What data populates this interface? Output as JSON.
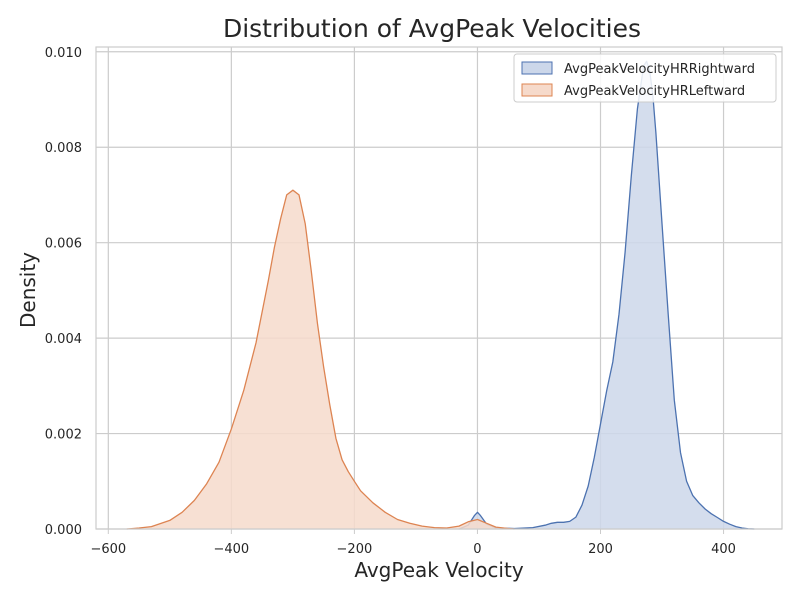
{
  "chart_data": {
    "type": "area",
    "title": "Distribution of AvgPeak Velocities",
    "xlabel": "AvgPeak Velocity",
    "ylabel": "Density",
    "xlim": [
      -620,
      495
    ],
    "ylim": [
      0,
      0.0101
    ],
    "xticks": [
      -600,
      -400,
      -200,
      0,
      200,
      400
    ],
    "xtick_labels": [
      "−600",
      "−400",
      "−200",
      "0",
      "200",
      "400"
    ],
    "yticks": [
      0,
      0.002,
      0.004,
      0.006,
      0.008,
      0.01
    ],
    "ytick_labels": [
      "0.000",
      "0.002",
      "0.004",
      "0.006",
      "0.008",
      "0.010"
    ],
    "grid": true,
    "legend_position": "top-right",
    "series": [
      {
        "name": "AvgPeakVelocityHRRightward",
        "line_color": "#4c72b0",
        "fill_color": "#ccd7ea",
        "x": [
          -30,
          -15,
          -5,
          0,
          5,
          15,
          30,
          60,
          90,
          110,
          120,
          130,
          140,
          150,
          160,
          170,
          180,
          190,
          200,
          210,
          220,
          230,
          240,
          250,
          260,
          270,
          275,
          280,
          285,
          290,
          300,
          310,
          320,
          330,
          340,
          350,
          360,
          370,
          380,
          390,
          400,
          410,
          420,
          430,
          440,
          450
        ],
        "y": [
          0,
          8e-05,
          0.00028,
          0.00035,
          0.00028,
          0.0001,
          2e-05,
          1e-05,
          3e-05,
          8e-05,
          0.00012,
          0.00014,
          0.00014,
          0.00016,
          0.00025,
          0.0005,
          0.0009,
          0.0015,
          0.0022,
          0.0029,
          0.0035,
          0.0045,
          0.0058,
          0.0074,
          0.0088,
          0.0097,
          0.0098,
          0.0096,
          0.0091,
          0.0083,
          0.0064,
          0.0045,
          0.0027,
          0.0016,
          0.001,
          0.0007,
          0.00055,
          0.00042,
          0.00032,
          0.00024,
          0.00016,
          0.0001,
          5e-05,
          2e-05,
          5e-06,
          0
        ]
      },
      {
        "name": "AvgPeakVelocityHRLeftward",
        "line_color": "#dd8452",
        "fill_color": "#f6dacb",
        "x": [
          -570,
          -550,
          -530,
          -500,
          -480,
          -460,
          -440,
          -420,
          -400,
          -380,
          -360,
          -340,
          -330,
          -320,
          -310,
          -300,
          -290,
          -280,
          -270,
          -260,
          -250,
          -240,
          -230,
          -220,
          -210,
          -200,
          -190,
          -170,
          -150,
          -130,
          -110,
          -90,
          -70,
          -50,
          -30,
          -15,
          0,
          15,
          30,
          50,
          60
        ],
        "y": [
          0,
          2e-05,
          5e-05,
          0.00018,
          0.00035,
          0.0006,
          0.00095,
          0.0014,
          0.0021,
          0.0029,
          0.0039,
          0.0052,
          0.0059,
          0.0065,
          0.007,
          0.0071,
          0.007,
          0.0064,
          0.0054,
          0.0043,
          0.0034,
          0.0026,
          0.0019,
          0.00145,
          0.0012,
          0.001,
          0.0008,
          0.00055,
          0.00035,
          0.0002,
          0.00012,
          6e-05,
          3e-05,
          2e-05,
          6e-05,
          0.00015,
          0.0002,
          0.00012,
          4e-05,
          1e-05,
          0
        ]
      }
    ]
  }
}
